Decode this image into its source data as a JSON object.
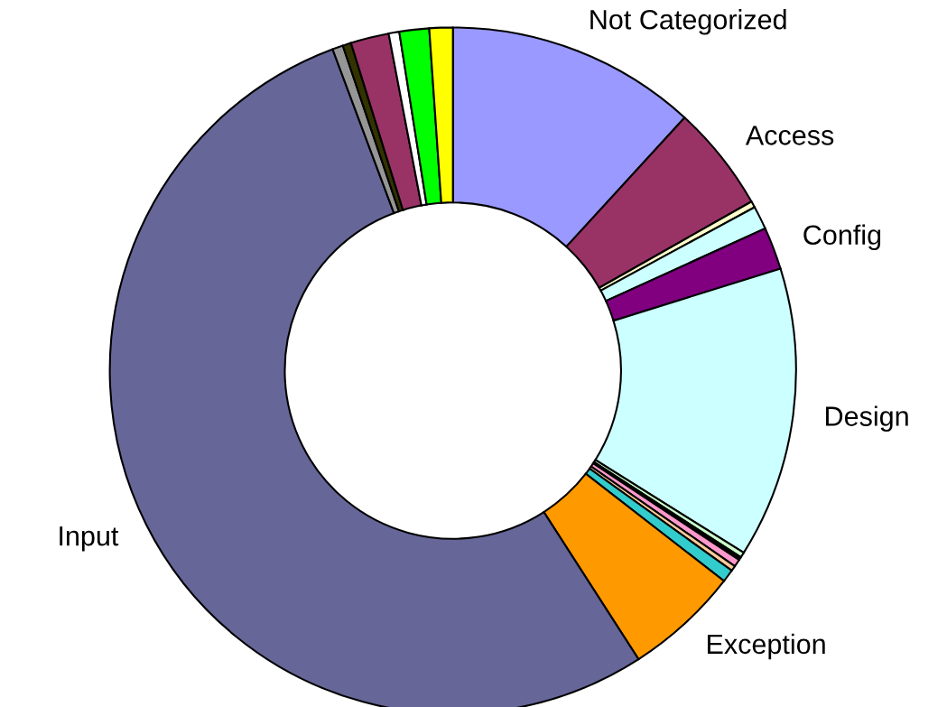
{
  "chart_data": {
    "type": "donut",
    "categories": [
      "Not Categorized",
      "Access",
      null,
      null,
      "Config",
      "Design",
      null,
      null,
      null,
      null,
      null,
      "Exception",
      "Input",
      null,
      null,
      null,
      null,
      null,
      null
    ],
    "values": [
      11.8,
      5.0,
      0.3,
      1.1,
      2.0,
      13.7,
      0.25,
      0.15,
      0.35,
      0.25,
      0.6,
      5.4,
      53.4,
      0.5,
      0.4,
      1.8,
      0.5,
      1.4,
      1.1
    ],
    "colors": [
      "#9999ff",
      "#993366",
      "#ffffcc",
      "#ccffff",
      "#800080",
      "#ccffff",
      "#ccffcc",
      "#000000",
      "#ff99cc",
      "#ffcc99",
      "#33cccc",
      "#ff9900",
      "#666699",
      "#969696",
      "#333300",
      "#993366",
      "#ffffff",
      "#00ff00",
      "#ffff00"
    ],
    "legend": false
  }
}
